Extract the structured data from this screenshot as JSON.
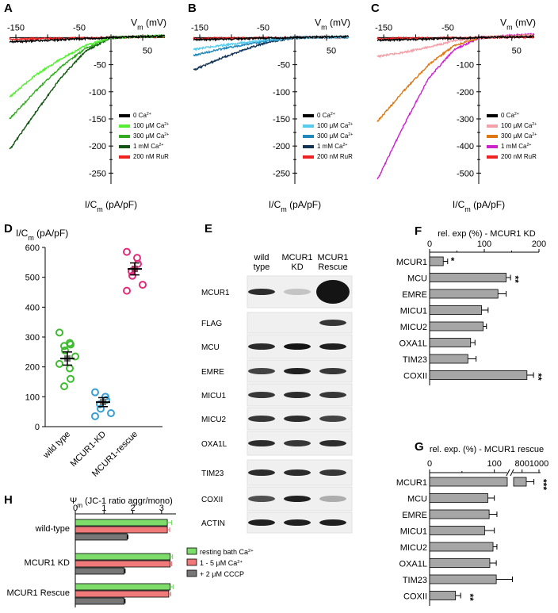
{
  "panels": {
    "A": "A",
    "B": "B",
    "C": "C",
    "D": "D",
    "E": "E",
    "F": "F",
    "G": "G",
    "H": "H"
  },
  "iv_axes": {
    "vm_label": "V",
    "vm_sub": "m",
    "vm_unit": " (mV)",
    "i_label": "I/C",
    "i_sub": "m",
    "i_unit": " (pA/pF)",
    "x_ticks": [
      "-150",
      "-50",
      "50"
    ]
  },
  "panel_A": {
    "y_ticks": [
      "-50",
      "-100",
      "-150",
      "-200",
      "-250"
    ],
    "legend": [
      {
        "label": "0 Ca",
        "sup": "2+",
        "color": "#000000"
      },
      {
        "label": "100 μM Ca",
        "sup": "2+",
        "color": "#55ee33"
      },
      {
        "label": "300 μM Ca",
        "sup": "2+",
        "color": "#33aa22"
      },
      {
        "label": "1 mM Ca",
        "sup": "2+",
        "color": "#115511"
      },
      {
        "label": "200 nM RuR",
        "sup": "",
        "color": "#ee2222"
      }
    ]
  },
  "panel_B": {
    "y_ticks": [
      "-50",
      "-100",
      "-150",
      "-200",
      "-250"
    ],
    "legend": [
      {
        "label": "0 Ca",
        "sup": "2+",
        "color": "#000000"
      },
      {
        "label": "100 μM Ca",
        "sup": "2+",
        "color": "#55ccee"
      },
      {
        "label": "300 μM Ca",
        "sup": "2+",
        "color": "#2288bb"
      },
      {
        "label": "1 mM Ca",
        "sup": "2+",
        "color": "#113355"
      },
      {
        "label": "200 nM RuR",
        "sup": "",
        "color": "#ee2222"
      }
    ]
  },
  "panel_C": {
    "y_ticks": [
      "-100",
      "-200",
      "-300",
      "-400",
      "-500"
    ],
    "legend": [
      {
        "label": "0 Ca",
        "sup": "2+",
        "color": "#000000"
      },
      {
        "label": "100 μM Ca",
        "sup": "2+",
        "color": "#f4a0a8"
      },
      {
        "label": "300 μM Ca",
        "sup": "2+",
        "color": "#dd7711"
      },
      {
        "label": "1 mM Ca",
        "sup": "2+",
        "color": "#cc22cc"
      },
      {
        "label": "200 nM RuR",
        "sup": "",
        "color": "#ee2222"
      }
    ]
  },
  "panel_D": {
    "y_title": "I/C",
    "y_sub": "m",
    "y_unit": " (pA/pF)",
    "y_ticks": [
      "0",
      "100",
      "200",
      "300",
      "400",
      "500",
      "600"
    ],
    "groups": [
      "wild type",
      "MCUR1-KD",
      "MCUR1-rescue"
    ]
  },
  "panel_E": {
    "columns": [
      "wild",
      "type",
      "MCUR1",
      "KD",
      "MCUR1",
      "Rescue"
    ],
    "rows": [
      "MCUR1",
      "FLAG",
      "MCU",
      "EMRE",
      "MICU1",
      "MICU2",
      "OXA1L",
      "TIM23",
      "COXII",
      "ACTIN"
    ]
  },
  "panel_F": {
    "title": "rel. exp (%) - MCUR1 KD",
    "ticks": [
      "0",
      "100",
      "200"
    ],
    "stars": [
      "*",
      "**",
      "**"
    ]
  },
  "panel_G": {
    "title": "rel. exp. (%) - MCUR1 rescue",
    "ticks": [
      "0",
      "100",
      "800",
      "1000"
    ],
    "stars": [
      "***",
      "**"
    ]
  },
  "panel_H": {
    "title": "Ψ",
    "title_sub": "m",
    "title_rest": " (JC-1 ratio aggr/mono)",
    "ticks": [
      "0",
      "1",
      "2",
      "3"
    ],
    "groups": [
      "wild-type",
      "MCUR1 KD",
      "MCUR1 Rescue"
    ],
    "legend": [
      {
        "label": "resting bath Ca",
        "sup": "2+",
        "color": "#7ddc6a"
      },
      {
        "label": "1 - 5 μM Ca",
        "sup": "2+",
        "color": "#f07a7a"
      },
      {
        "label": "+ 2 μM CCCP",
        "sup": "",
        "color": "#777777"
      }
    ]
  },
  "chart_data": [
    {
      "type": "bar",
      "title": "rel. exp (%) - MCUR1 KD",
      "categories": [
        "MCUR1",
        "MCU",
        "EMRE",
        "MICU1",
        "MICU2",
        "OXA1L",
        "TIM23",
        "COXII"
      ],
      "values": [
        25,
        140,
        125,
        95,
        98,
        75,
        70,
        178
      ],
      "errors": [
        8,
        8,
        15,
        12,
        6,
        8,
        15,
        12
      ],
      "xlim": [
        0,
        200
      ]
    },
    {
      "type": "bar",
      "title": "rel. exp. (%) - MCUR1 rescue",
      "categories": [
        "MCUR1",
        "MCU",
        "EMRE",
        "MICU1",
        "MICU2",
        "OXA1L",
        "TIM23",
        "COXII"
      ],
      "values": [
        850,
        90,
        92,
        85,
        98,
        93,
        103,
        40
      ],
      "errors": [
        90,
        10,
        12,
        15,
        6,
        10,
        25,
        8
      ],
      "xlim": [
        0,
        1000
      ]
    },
    {
      "type": "bar",
      "title": "Ψm (JC-1 ratio aggr/mono)",
      "categories": [
        "wild-type",
        "MCUR1 KD",
        "MCUR1 Rescue"
      ],
      "series": [
        {
          "name": "resting bath Ca2+",
          "values": [
            3.2,
            3.3,
            3.3
          ],
          "errors": [
            0.15,
            0.08,
            0.1
          ]
        },
        {
          "name": "1 - 5 μM Ca2+",
          "values": [
            3.2,
            3.3,
            3.25
          ],
          "errors": [
            0.08,
            0.05,
            0.07
          ]
        },
        {
          "name": "+ 2 μM CCCP",
          "values": [
            1.8,
            1.7,
            1.7
          ],
          "errors": [
            0.03,
            0.03,
            0.03
          ]
        }
      ],
      "xlim": [
        0,
        3.5
      ]
    },
    {
      "type": "scatter",
      "title": "I/Cm (pA/pF)",
      "categories": [
        "wild type",
        "MCUR1-KD",
        "MCUR1-rescue"
      ],
      "points": [
        [
          315,
          280,
          275,
          270,
          255,
          235,
          210,
          195,
          160,
          135
        ],
        [
          115,
          100,
          90,
          75,
          60,
          45,
          35
        ],
        [
          585,
          565,
          545,
          520,
          505,
          475,
          455
        ]
      ],
      "means": [
        228,
        82,
        528
      ],
      "sem": [
        22,
        15,
        20
      ],
      "ylim": [
        0,
        600
      ]
    },
    {
      "type": "line",
      "title": "Panel A",
      "xlim": [
        -160,
        85
      ],
      "ylim": [
        -270,
        5
      ],
      "series": [
        {
          "name": "0 Ca2+",
          "x": [
            -160,
            0,
            80
          ],
          "y": [
            -8,
            0,
            3
          ]
        },
        {
          "name": "100 μM Ca2+",
          "x": [
            -160,
            -120,
            -80,
            -40,
            0,
            80
          ],
          "y": [
            -110,
            -70,
            -40,
            -15,
            0,
            3
          ]
        },
        {
          "name": "300 μM Ca2+",
          "x": [
            -160,
            -120,
            -80,
            -40,
            0,
            80
          ],
          "y": [
            -150,
            -100,
            -55,
            -20,
            0,
            3
          ]
        },
        {
          "name": "1 mM Ca2+",
          "x": [
            -160,
            -120,
            -80,
            -40,
            0,
            80
          ],
          "y": [
            -207,
            -140,
            -75,
            -25,
            0,
            3
          ]
        },
        {
          "name": "200 nM RuR",
          "x": [
            -160,
            0,
            80
          ],
          "y": [
            -3,
            0,
            2
          ]
        }
      ]
    },
    {
      "type": "line",
      "title": "Panel B",
      "xlim": [
        -160,
        85
      ],
      "ylim": [
        -270,
        5
      ],
      "series": [
        {
          "name": "0 Ca2+",
          "x": [
            -160,
            0,
            80
          ],
          "y": [
            -4,
            0,
            2
          ]
        },
        {
          "name": "100 μM Ca2+",
          "x": [
            -160,
            -120,
            -80,
            -40,
            0,
            80
          ],
          "y": [
            -22,
            -15,
            -9,
            -4,
            0,
            1
          ]
        },
        {
          "name": "300 μM Ca2+",
          "x": [
            -160,
            -120,
            -80,
            -40,
            0,
            80
          ],
          "y": [
            -33,
            -22,
            -13,
            -6,
            0,
            1
          ]
        },
        {
          "name": "1 mM Ca2+",
          "x": [
            -160,
            -120,
            -80,
            -40,
            0,
            80
          ],
          "y": [
            -60,
            -40,
            -22,
            -8,
            0,
            1
          ]
        },
        {
          "name": "200 nM RuR",
          "x": [
            -160,
            0,
            80
          ],
          "y": [
            -2,
            0,
            1
          ]
        }
      ]
    },
    {
      "type": "line",
      "title": "Panel C",
      "xlim": [
        -160,
        85
      ],
      "ylim": [
        -540,
        10
      ],
      "series": [
        {
          "name": "0 Ca2+",
          "x": [
            -160,
            0,
            80
          ],
          "y": [
            -10,
            0,
            4
          ]
        },
        {
          "name": "100 μM Ca2+",
          "x": [
            -160,
            -120,
            -80,
            -40,
            0,
            80
          ],
          "y": [
            -70,
            -55,
            -35,
            -12,
            0,
            8
          ]
        },
        {
          "name": "300 μM Ca2+",
          "x": [
            -160,
            -120,
            -80,
            -40,
            0,
            80
          ],
          "y": [
            -310,
            -200,
            -100,
            -30,
            0,
            8
          ]
        },
        {
          "name": "1 mM Ca2+",
          "x": [
            -160,
            -120,
            -80,
            -40,
            0,
            80
          ],
          "y": [
            -525,
            -330,
            -150,
            -45,
            0,
            12
          ]
        },
        {
          "name": "200 nM RuR",
          "x": [
            -160,
            0,
            80
          ],
          "y": [
            -4,
            0,
            2
          ]
        }
      ]
    }
  ]
}
